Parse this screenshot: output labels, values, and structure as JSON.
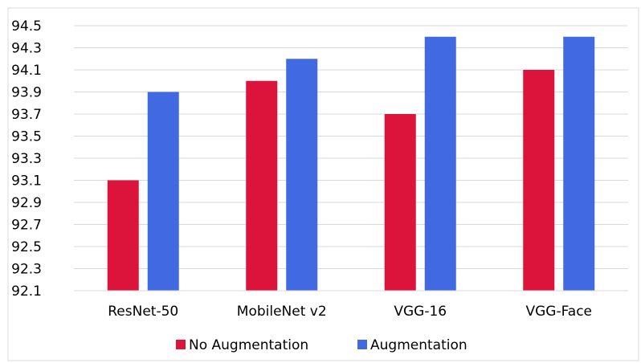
{
  "chart_data": {
    "type": "bar",
    "categories": [
      "ResNet-50",
      "MobileNet v2",
      "VGG-16",
      "VGG-Face"
    ],
    "series": [
      {
        "name": "No Augmentation",
        "color": "#DC143C",
        "values": [
          93.1,
          94.0,
          93.7,
          94.1
        ]
      },
      {
        "name": "Augmentation",
        "color": "#4169E1",
        "values": [
          93.9,
          94.2,
          94.4,
          94.4
        ]
      }
    ],
    "ylim": [
      92.1,
      94.5
    ],
    "yticks": [
      "92.1",
      "92.3",
      "92.5",
      "92.7",
      "92.9",
      "93.1",
      "93.3",
      "93.5",
      "93.7",
      "93.9",
      "94.1",
      "94.3",
      "94.5"
    ],
    "grid": true,
    "legend_position": "bottom"
  }
}
